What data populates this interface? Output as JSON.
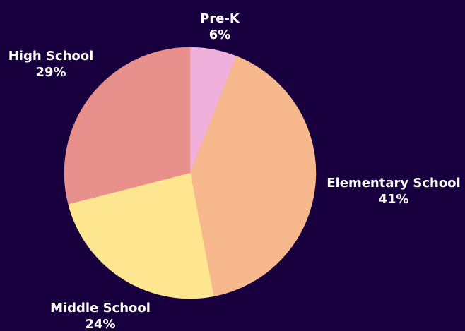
{
  "chart_data": {
    "type": "pie",
    "categories": [
      "Pre-K",
      "Elementary School",
      "Middle School",
      "High School"
    ],
    "values": [
      6,
      41,
      24,
      29
    ],
    "value_labels": [
      "6%",
      "41%",
      "24%",
      "29%"
    ],
    "colors": [
      "#efb0dc",
      "#f8b88d",
      "#fee690",
      "#e8918c"
    ],
    "start_angle_deg": 0,
    "direction": "clockwise",
    "legend": "none",
    "background": "#17003d"
  }
}
